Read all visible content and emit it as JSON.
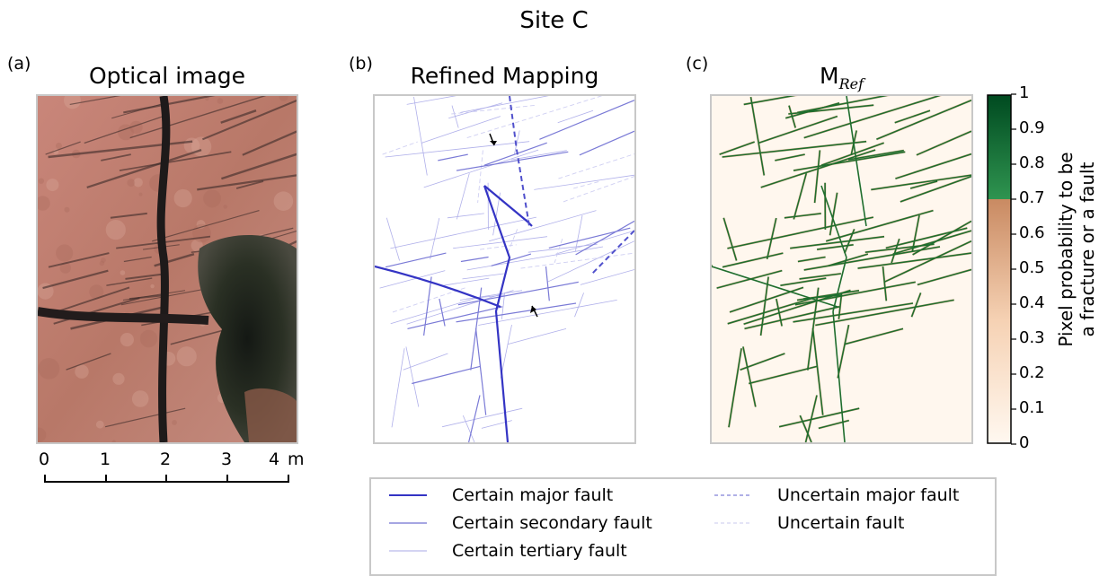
{
  "figure": {
    "title": "Site C"
  },
  "panels": {
    "a": {
      "letter": "(a)",
      "title": "Optical image"
    },
    "b": {
      "letter": "(b)",
      "title": "Refined Mapping"
    },
    "c": {
      "letter": "(c)",
      "title": "M",
      "title_sub": "Ref"
    }
  },
  "scale_bar": {
    "ticks": [
      "0",
      "1",
      "2",
      "3",
      "4"
    ],
    "unit": "m"
  },
  "colorbar": {
    "ticks": [
      "0",
      "0.1",
      "0.2",
      "0.3",
      "0.4",
      "0.5",
      "0.6",
      "0.7",
      "0.8",
      "0.9",
      "1"
    ],
    "label_line1": "Pixel probability to be",
    "label_line2": "a fracture or a fault",
    "threshold": 0.7,
    "colors": {
      "low": "#fff8f0",
      "mid": "#e6a070",
      "threshold_low": "#c98a62",
      "threshold_high": "#2f9450",
      "high": "#004a20"
    }
  },
  "legend": {
    "items": [
      {
        "label": "Certain major fault",
        "style": "solid-thick",
        "color": "#3c3cc8"
      },
      {
        "label": "Certain secondary fault",
        "style": "solid-medium",
        "color": "#7070d0"
      },
      {
        "label": "Certain tertiary fault",
        "style": "solid-thin",
        "color": "#a8a8e6"
      },
      {
        "label": "Uncertain major fault",
        "style": "dashed-medium",
        "color": "#8080d8"
      },
      {
        "label": "Uncertain fault",
        "style": "dashed-thin",
        "color": "#c8c8ee"
      }
    ]
  },
  "annotations": {
    "arrows": [
      "arrow-upper",
      "arrow-lower"
    ]
  }
}
